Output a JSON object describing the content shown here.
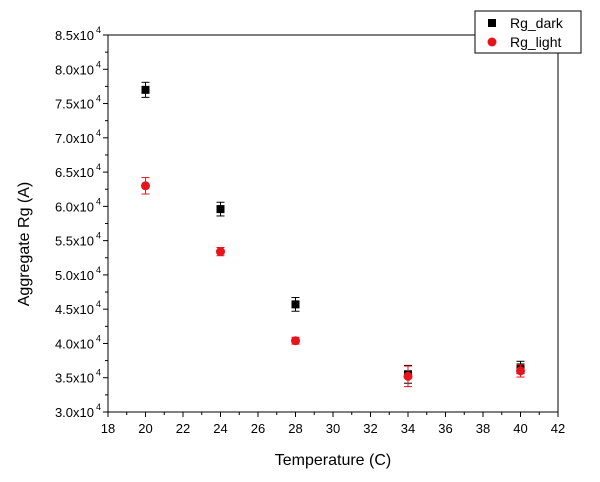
{
  "chart_data": {
    "type": "scatter",
    "title": "",
    "xlabel": "Temperature (C)",
    "ylabel": "Aggregate Rg (A)",
    "xlim": [
      18,
      42
    ],
    "ylim": [
      30000,
      85000
    ],
    "xticks": [
      18,
      20,
      22,
      24,
      26,
      28,
      30,
      32,
      34,
      36,
      38,
      40,
      42
    ],
    "yticks": [
      {
        "value": 30000,
        "mantissa": "3.0x10",
        "exp": "4"
      },
      {
        "value": 35000,
        "mantissa": "3.5x10",
        "exp": "4"
      },
      {
        "value": 40000,
        "mantissa": "4.0x10",
        "exp": "4"
      },
      {
        "value": 45000,
        "mantissa": "4.5x10",
        "exp": "4"
      },
      {
        "value": 50000,
        "mantissa": "5.0x10",
        "exp": "4"
      },
      {
        "value": 55000,
        "mantissa": "5.5x10",
        "exp": "4"
      },
      {
        "value": 60000,
        "mantissa": "6.0x10",
        "exp": "4"
      },
      {
        "value": 65000,
        "mantissa": "6.5x10",
        "exp": "4"
      },
      {
        "value": 70000,
        "mantissa": "7.0x10",
        "exp": "4"
      },
      {
        "value": 75000,
        "mantissa": "7.5x10",
        "exp": "4"
      },
      {
        "value": 80000,
        "mantissa": "8.0x10",
        "exp": "4"
      },
      {
        "value": 85000,
        "mantissa": "8.5x10",
        "exp": "4"
      }
    ],
    "grid": false,
    "legend_position": "top-right",
    "series": [
      {
        "name": "Rg_dark",
        "color": "#000000",
        "marker": "square",
        "x": [
          20,
          24,
          28,
          34,
          40
        ],
        "y": [
          77000,
          59600,
          45700,
          35500,
          36500
        ],
        "err": [
          1100,
          1000,
          1000,
          1300,
          900
        ]
      },
      {
        "name": "Rg_light",
        "color": "#e8141b",
        "marker": "circle",
        "x": [
          20,
          24,
          28,
          34,
          40
        ],
        "y": [
          63000,
          53400,
          40400,
          35200,
          36000
        ],
        "err": [
          1200,
          600,
          500,
          1500,
          900
        ]
      }
    ]
  }
}
